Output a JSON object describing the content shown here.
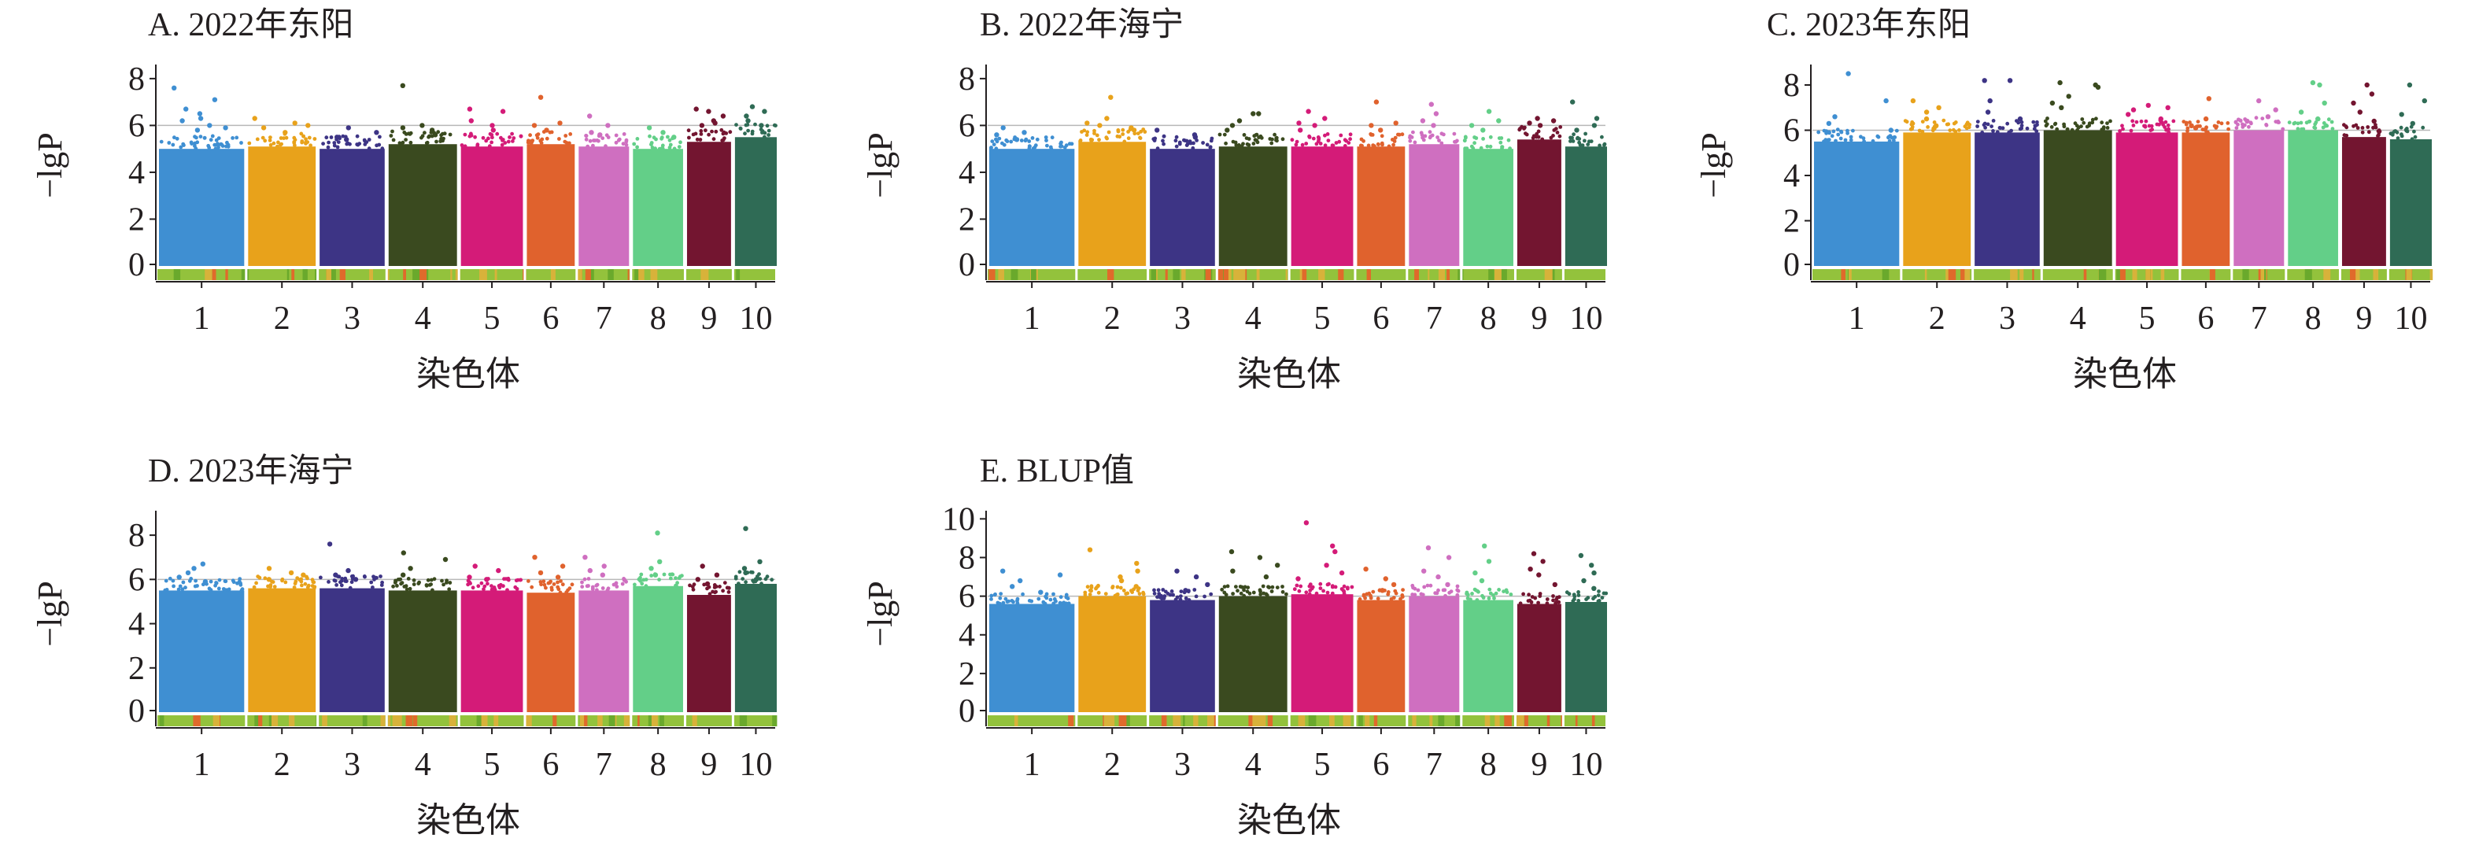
{
  "figure": {
    "panel_labels": [
      "A. 2022年东阳",
      "B. 2022年海宁",
      "C. 2023年东阳",
      "D. 2023年海宁",
      "E. BLUP值"
    ]
  },
  "colors": {
    "chromosomes": [
      "#3f8fd2",
      "#e8a21b",
      "#3d3485",
      "#3a4a1f",
      "#d41b78",
      "#e0622d",
      "#cf6fc0",
      "#63cf88",
      "#731530",
      "#2f6b55"
    ],
    "axis": "#231f20",
    "threshold": "#b8b8b8",
    "chromosome_strip": "#93c23c"
  },
  "chart_data": [
    {
      "type": "scatter",
      "title": "A. 2022年东阳",
      "xlabel": "染色体",
      "ylabel": "−lgP",
      "categories": [
        "1",
        "2",
        "3",
        "4",
        "5",
        "6",
        "7",
        "8",
        "9",
        "10"
      ],
      "yticks": [
        0,
        2,
        4,
        6,
        8
      ],
      "ylim": [
        0,
        8.5
      ],
      "threshold": 6.0,
      "grid": false,
      "series": [
        {
          "chromosome": "1",
          "bulk_max": 5.0,
          "top_values": [
            7.6,
            7.1,
            6.7,
            6.5,
            6.3,
            6.2,
            6.0,
            5.9,
            5.8
          ]
        },
        {
          "chromosome": "2",
          "bulk_max": 5.1,
          "top_values": [
            6.3,
            6.1,
            6.0,
            5.9,
            5.7
          ]
        },
        {
          "chromosome": "3",
          "bulk_max": 5.0,
          "top_values": [
            5.9,
            5.7,
            5.5,
            5.4
          ]
        },
        {
          "chromosome": "4",
          "bulk_max": 5.2,
          "top_values": [
            7.7,
            6.0,
            5.9,
            5.8,
            5.6
          ]
        },
        {
          "chromosome": "5",
          "bulk_max": 5.1,
          "top_values": [
            6.7,
            6.6,
            6.2,
            6.0,
            5.8
          ]
        },
        {
          "chromosome": "6",
          "bulk_max": 5.2,
          "top_values": [
            7.2,
            6.1,
            6.0,
            5.8
          ]
        },
        {
          "chromosome": "7",
          "bulk_max": 5.1,
          "top_values": [
            6.4,
            6.0,
            5.7,
            5.6
          ]
        },
        {
          "chromosome": "8",
          "bulk_max": 5.0,
          "top_values": [
            5.9,
            5.7,
            5.5
          ]
        },
        {
          "chromosome": "9",
          "bulk_max": 5.3,
          "top_values": [
            6.7,
            6.6,
            6.4,
            6.2,
            6.1,
            6.0
          ]
        },
        {
          "chromosome": "10",
          "bulk_max": 5.5,
          "top_values": [
            6.8,
            6.6,
            6.4,
            6.2,
            6.0
          ]
        }
      ]
    },
    {
      "type": "scatter",
      "title": "B. 2022年海宁",
      "xlabel": "染色体",
      "ylabel": "−lgP",
      "categories": [
        "1",
        "2",
        "3",
        "4",
        "5",
        "6",
        "7",
        "8",
        "9",
        "10"
      ],
      "yticks": [
        0,
        2,
        4,
        6,
        8
      ],
      "ylim": [
        0,
        8.5
      ],
      "threshold": 6.0,
      "grid": false,
      "series": [
        {
          "chromosome": "1",
          "bulk_max": 5.0,
          "top_values": [
            5.9,
            5.7,
            5.6,
            5.4
          ]
        },
        {
          "chromosome": "2",
          "bulk_max": 5.3,
          "top_values": [
            7.2,
            6.3,
            6.1,
            6.0,
            5.9,
            5.8
          ]
        },
        {
          "chromosome": "3",
          "bulk_max": 5.0,
          "top_values": [
            5.8,
            5.6,
            5.5
          ]
        },
        {
          "chromosome": "4",
          "bulk_max": 5.1,
          "top_values": [
            6.5,
            6.5,
            6.2,
            6.0,
            5.8
          ]
        },
        {
          "chromosome": "5",
          "bulk_max": 5.1,
          "top_values": [
            6.6,
            6.3,
            6.1,
            6.0,
            5.8
          ]
        },
        {
          "chromosome": "6",
          "bulk_max": 5.1,
          "top_values": [
            7.0,
            6.1,
            6.0,
            5.8
          ]
        },
        {
          "chromosome": "7",
          "bulk_max": 5.2,
          "top_values": [
            6.9,
            6.5,
            6.2,
            6.0
          ]
        },
        {
          "chromosome": "8",
          "bulk_max": 5.0,
          "top_values": [
            6.6,
            6.2,
            6.0,
            5.8
          ]
        },
        {
          "chromosome": "9",
          "bulk_max": 5.4,
          "top_values": [
            6.3,
            6.2,
            6.1,
            6.0
          ]
        },
        {
          "chromosome": "10",
          "bulk_max": 5.1,
          "top_values": [
            7.0,
            6.3,
            6.0,
            5.8
          ]
        }
      ]
    },
    {
      "type": "scatter",
      "title": "C. 2023年东阳",
      "xlabel": "染色体",
      "ylabel": "−lgP",
      "categories": [
        "1",
        "2",
        "3",
        "4",
        "5",
        "6",
        "7",
        "8",
        "9",
        "10"
      ],
      "yticks": [
        0,
        2,
        4,
        6,
        8
      ],
      "ylim": [
        0,
        8.8
      ],
      "threshold": 6.0,
      "grid": false,
      "series": [
        {
          "chromosome": "1",
          "bulk_max": 5.5,
          "top_values": [
            8.5,
            7.3,
            6.6,
            6.3,
            6.0
          ]
        },
        {
          "chromosome": "2",
          "bulk_max": 5.9,
          "top_values": [
            7.3,
            7.0,
            6.8,
            6.5,
            6.2
          ]
        },
        {
          "chromosome": "3",
          "bulk_max": 5.9,
          "top_values": [
            8.2,
            8.2,
            7.3,
            6.8,
            6.5
          ]
        },
        {
          "chromosome": "4",
          "bulk_max": 6.0,
          "top_values": [
            8.1,
            8.0,
            7.9,
            7.5,
            7.2,
            7.0
          ]
        },
        {
          "chromosome": "5",
          "bulk_max": 5.9,
          "top_values": [
            7.1,
            7.0,
            6.9,
            6.7,
            6.5
          ]
        },
        {
          "chromosome": "6",
          "bulk_max": 5.9,
          "top_values": [
            7.4,
            6.5,
            6.2,
            6.1
          ]
        },
        {
          "chromosome": "7",
          "bulk_max": 6.0,
          "top_values": [
            7.3,
            6.9,
            6.6,
            6.4
          ]
        },
        {
          "chromosome": "8",
          "bulk_max": 6.0,
          "top_values": [
            8.1,
            8.0,
            7.2,
            6.8,
            6.5
          ]
        },
        {
          "chromosome": "9",
          "bulk_max": 5.7,
          "top_values": [
            8.0,
            7.6,
            7.2,
            6.8,
            6.4
          ]
        },
        {
          "chromosome": "10",
          "bulk_max": 5.6,
          "top_values": [
            8.0,
            7.3,
            6.7,
            6.3
          ]
        }
      ]
    },
    {
      "type": "scatter",
      "title": "D. 2023年海宁",
      "xlabel": "染色体",
      "ylabel": "−lgP",
      "categories": [
        "1",
        "2",
        "3",
        "4",
        "5",
        "6",
        "7",
        "8",
        "9",
        "10"
      ],
      "yticks": [
        0,
        2,
        4,
        6,
        8
      ],
      "ylim": [
        0,
        9.0
      ],
      "threshold": 6.0,
      "grid": false,
      "series": [
        {
          "chromosome": "1",
          "bulk_max": 5.5,
          "top_values": [
            6.7,
            6.5,
            6.3,
            6.1,
            5.9
          ]
        },
        {
          "chromosome": "2",
          "bulk_max": 5.6,
          "top_values": [
            6.5,
            6.3,
            6.2,
            6.0
          ]
        },
        {
          "chromosome": "3",
          "bulk_max": 5.6,
          "top_values": [
            7.6,
            6.4,
            6.2,
            6.0
          ]
        },
        {
          "chromosome": "4",
          "bulk_max": 5.5,
          "top_values": [
            7.2,
            6.9,
            6.5,
            6.2
          ]
        },
        {
          "chromosome": "5",
          "bulk_max": 5.5,
          "top_values": [
            6.6,
            6.4,
            6.1,
            6.0
          ]
        },
        {
          "chromosome": "6",
          "bulk_max": 5.4,
          "top_values": [
            7.0,
            6.6,
            6.3,
            6.1
          ]
        },
        {
          "chromosome": "7",
          "bulk_max": 5.5,
          "top_values": [
            7.0,
            6.6,
            6.4,
            6.2
          ]
        },
        {
          "chromosome": "8",
          "bulk_max": 5.7,
          "top_values": [
            8.1,
            6.8,
            6.5,
            6.2
          ]
        },
        {
          "chromosome": "9",
          "bulk_max": 5.3,
          "top_values": [
            6.6,
            6.2,
            6.0,
            5.8
          ]
        },
        {
          "chromosome": "10",
          "bulk_max": 5.8,
          "top_values": [
            8.3,
            6.8,
            6.5,
            6.3,
            6.0
          ]
        }
      ]
    },
    {
      "type": "scatter",
      "title": "E. BLUP值",
      "xlabel": "染色体",
      "ylabel": "−lgP",
      "categories": [
        "1",
        "2",
        "3",
        "4",
        "5",
        "6",
        "7",
        "8",
        "9",
        "10"
      ],
      "yticks": [
        0,
        2,
        4,
        6,
        8,
        10
      ],
      "ylim": [
        0,
        10.3
      ],
      "threshold": 6.0,
      "grid": false,
      "series": [
        {
          "chromosome": "1",
          "bulk_max": 5.6,
          "top_values": [
            7.3,
            7.1,
            6.8,
            6.5,
            6.2
          ]
        },
        {
          "chromosome": "2",
          "bulk_max": 6.0,
          "top_values": [
            8.4,
            7.7,
            7.3,
            7.0,
            6.8,
            6.5
          ]
        },
        {
          "chromosome": "3",
          "bulk_max": 5.8,
          "top_values": [
            7.3,
            7.0,
            6.6,
            6.3
          ]
        },
        {
          "chromosome": "4",
          "bulk_max": 6.0,
          "top_values": [
            8.3,
            8.0,
            7.6,
            7.3,
            7.0
          ]
        },
        {
          "chromosome": "5",
          "bulk_max": 6.1,
          "top_values": [
            9.8,
            8.6,
            8.3,
            7.6,
            7.2,
            6.9
          ]
        },
        {
          "chromosome": "6",
          "bulk_max": 5.8,
          "top_values": [
            7.4,
            6.9,
            6.6,
            6.3
          ]
        },
        {
          "chromosome": "7",
          "bulk_max": 6.0,
          "top_values": [
            8.5,
            8.0,
            7.3,
            7.0,
            6.6
          ]
        },
        {
          "chromosome": "8",
          "bulk_max": 5.8,
          "top_values": [
            8.6,
            7.8,
            7.2,
            6.8
          ]
        },
        {
          "chromosome": "9",
          "bulk_max": 5.6,
          "top_values": [
            8.2,
            7.8,
            7.4,
            7.1,
            6.6
          ]
        },
        {
          "chromosome": "10",
          "bulk_max": 5.7,
          "top_values": [
            8.1,
            7.6,
            7.2,
            6.8,
            6.4
          ]
        }
      ]
    }
  ]
}
